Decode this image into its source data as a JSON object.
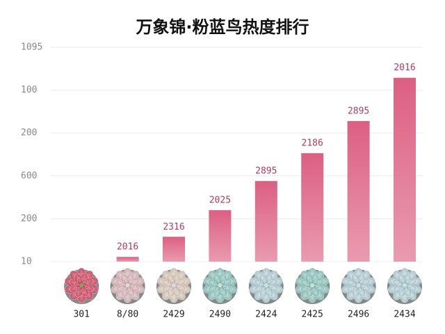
{
  "chart_data": {
    "type": "bar",
    "title": "万象锦·粉蓝鸟热度排行",
    "categories": [
      "301",
      "8/80",
      "2429",
      "2490",
      "2424",
      "2425",
      "2496",
      "2434"
    ],
    "values": [
      null,
      0.11,
      0.58,
      1.2,
      1.88,
      2.53,
      3.28,
      4.29
    ],
    "annotations": [
      null,
      "2016",
      "2316",
      "2025",
      "2895",
      "2186",
      "2895",
      "2016"
    ],
    "color": "#dc5f82",
    "ylim": [
      0,
      5
    ],
    "yticks": [
      {
        "value": 0,
        "label": "10"
      },
      {
        "value": 1,
        "label": "200"
      },
      {
        "value": 2,
        "label": "600"
      },
      {
        "value": 3,
        "label": "200"
      },
      {
        "value": 4,
        "label": "100"
      },
      {
        "value": 5,
        "label": "1095"
      }
    ],
    "grid": true
  }
}
